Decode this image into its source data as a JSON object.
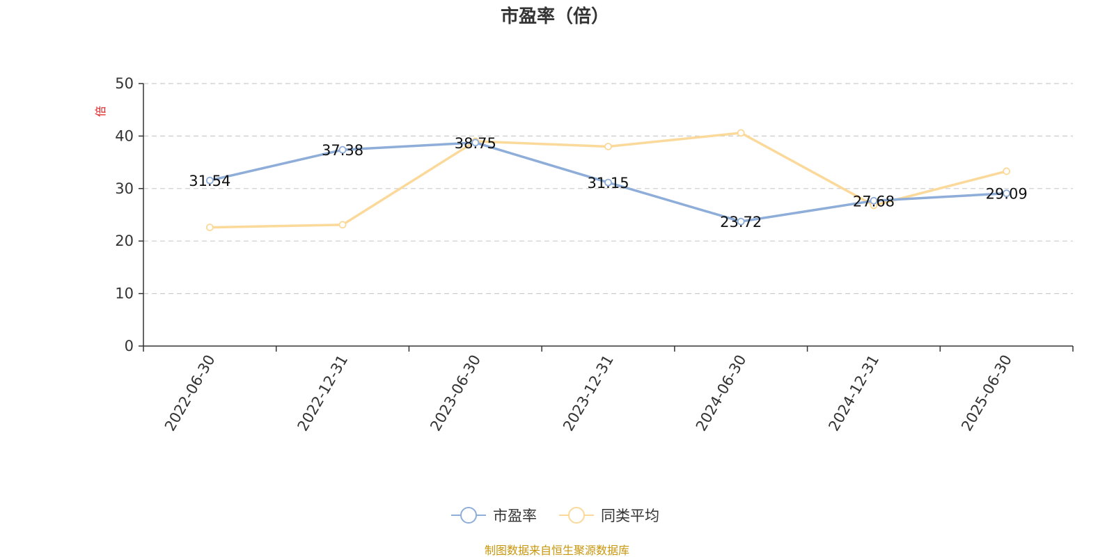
{
  "chart_data": {
    "type": "line",
    "title": "市盈率（倍）",
    "ylabel": "倍",
    "xlabel": "",
    "categories": [
      "2022-06-30",
      "2022-12-31",
      "2023-06-30",
      "2023-12-31",
      "2024-06-30",
      "2024-12-31",
      "2025-06-30"
    ],
    "ylim": [
      0,
      50
    ],
    "yticks": [
      0,
      10,
      20,
      30,
      40,
      50
    ],
    "grid": true,
    "legend_position": "bottom",
    "series": [
      {
        "name": "市盈率",
        "color": "#8eaed9",
        "values": [
          31.54,
          37.38,
          38.75,
          31.15,
          23.72,
          27.68,
          29.09
        ],
        "labels": [
          "31.54",
          "37.38",
          "38.75",
          "31.15",
          "23.72",
          "27.68",
          "29.09"
        ]
      },
      {
        "name": "同类平均",
        "color": "#fbd99a",
        "values": [
          22.6,
          23.1,
          39.0,
          38.0,
          40.6,
          26.8,
          33.3
        ]
      }
    ],
    "source": "制图数据来自恒生聚源数据库"
  }
}
